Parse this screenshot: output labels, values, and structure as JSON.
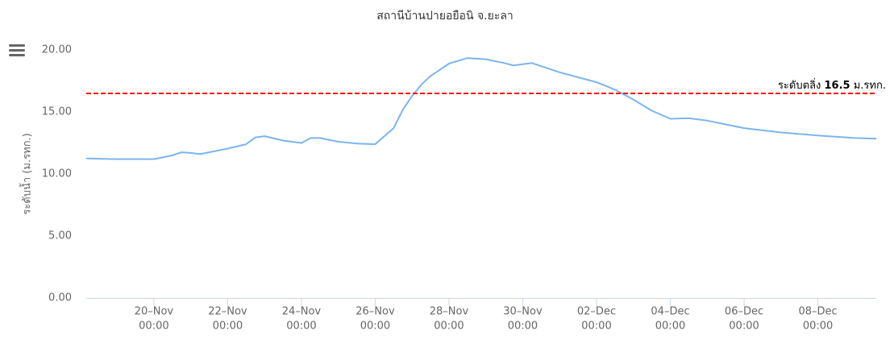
{
  "chart_data": {
    "type": "line",
    "title": "สถานีบ้านปายอยือนิ จ.ยะลา",
    "y_label": "ระดับน้ำ (ม.รทก.)",
    "color": "#7cb5ec",
    "grid": false,
    "x": [
      "18–Nov 04:00",
      "19–Nov 00:00",
      "19–Nov 12:00",
      "20–Nov 00:00",
      "20–Nov 12:00",
      "20–Nov 18:00",
      "21–Nov 00:00",
      "21–Nov 06:00",
      "21–Nov 12:00",
      "22–Nov 00:00",
      "22–Nov 12:00",
      "22–Nov 18:00",
      "23–Nov 00:00",
      "23–Nov 12:00",
      "24–Nov 00:00",
      "24–Nov 06:00",
      "24–Nov 12:00",
      "25–Nov 00:00",
      "25–Nov 12:00",
      "26–Nov 00:00",
      "26–Nov 12:00",
      "26–Nov 18:00",
      "27–Nov 00:00",
      "27–Nov 06:00",
      "27–Nov 12:00",
      "28–Nov 00:00",
      "28–Nov 12:00",
      "29–Nov 00:00",
      "29–Nov 12:00",
      "29–Nov 18:00",
      "30–Nov 06:00",
      "01–Dec 00:00",
      "01–Dec 12:00",
      "02–Dec 00:00",
      "02–Dec 12:00",
      "03–Dec 00:00",
      "03–Dec 12:00",
      "04–Dec 00:00",
      "04–Dec 12:00",
      "05–Dec 00:00",
      "06–Dec 00:00",
      "07–Dec 00:00",
      "08–Dec 00:00",
      "09–Dec 00:00",
      "09–Dec 14:00"
    ],
    "values": [
      11.25,
      11.2,
      11.2,
      11.2,
      11.5,
      11.75,
      11.7,
      11.6,
      11.75,
      12.05,
      12.4,
      12.95,
      13.05,
      12.7,
      12.5,
      12.9,
      12.9,
      12.6,
      12.45,
      12.4,
      13.7,
      15.2,
      16.3,
      17.2,
      17.9,
      18.9,
      19.35,
      19.25,
      18.95,
      18.75,
      18.95,
      18.2,
      17.8,
      17.4,
      16.8,
      16.0,
      15.1,
      14.45,
      14.5,
      14.3,
      13.7,
      13.35,
      13.1,
      12.9,
      12.85
    ],
    "xlim": [
      "18–Nov 04:00",
      "09–Dec 14:00"
    ],
    "xticks": [
      {
        "date": "20–Nov",
        "time": "00:00"
      },
      {
        "date": "22–Nov",
        "time": "00:00"
      },
      {
        "date": "24–Nov",
        "time": "00:00"
      },
      {
        "date": "26–Nov",
        "time": "00:00"
      },
      {
        "date": "28–Nov",
        "time": "00:00"
      },
      {
        "date": "30–Nov",
        "time": "00:00"
      },
      {
        "date": "02–Dec",
        "time": "00:00"
      },
      {
        "date": "04–Dec",
        "time": "00:00"
      },
      {
        "date": "06–Dec",
        "time": "00:00"
      },
      {
        "date": "08–Dec",
        "time": "00:00"
      }
    ],
    "ylim": [
      0,
      21.5
    ],
    "yticks": [
      {
        "value": 0,
        "label": "0.00"
      },
      {
        "value": 5,
        "label": "5.00"
      },
      {
        "value": 10,
        "label": "10.00"
      },
      {
        "value": 15,
        "label": "15.00"
      },
      {
        "value": 20,
        "label": "20.00"
      }
    ],
    "threshold": {
      "value": 16.5,
      "color": "#ff0000",
      "label_prefix": "ระดับตลิ่ง",
      "label_suffix": "ม.รทก."
    }
  }
}
